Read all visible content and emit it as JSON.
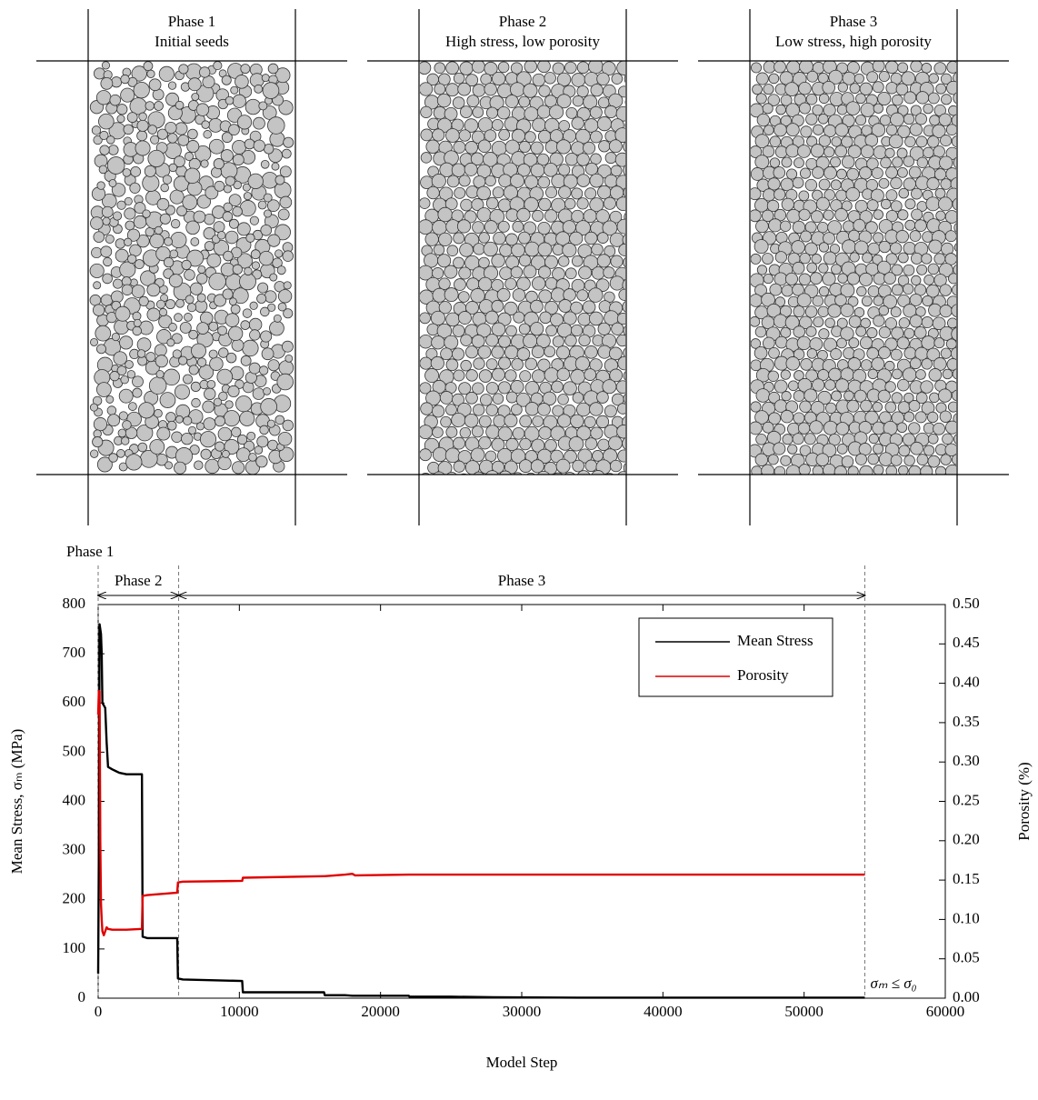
{
  "panels": [
    {
      "title": "Phase 1",
      "subtitle": "Initial seeds"
    },
    {
      "title": "Phase 2",
      "subtitle": "High stress, low porosity"
    },
    {
      "title": "Phase 3",
      "subtitle": "Low stress, high porosity"
    }
  ],
  "chart_data": {
    "type": "line",
    "xlabel": "Model Step",
    "ylabel": "Mean Stress, σₘ (MPa)",
    "y2label": "Porosity (%)",
    "x": [
      0,
      50,
      100,
      150,
      200,
      250,
      300,
      400,
      500,
      600,
      700,
      1000,
      1500,
      2000,
      3100,
      3150,
      3500,
      5600,
      5650,
      6000,
      10200,
      10250,
      16000,
      16050,
      17500,
      18000,
      18200,
      22000,
      22050,
      25000,
      28000,
      34000,
      54300
    ],
    "series": [
      {
        "name": "Mean Stress",
        "color": "#000000",
        "values": [
          50,
          300,
          760,
          750,
          740,
          700,
          600,
          595,
          590,
          520,
          470,
          465,
          458,
          455,
          455,
          125,
          122,
          122,
          40,
          38,
          35,
          12,
          12,
          6,
          6,
          5,
          5,
          5,
          3,
          3,
          2,
          1,
          1
        ]
      },
      {
        "name": "Porosity",
        "color": "#e00000",
        "axis": "y2",
        "values": [
          0.36,
          0.39,
          0.39,
          0.2,
          0.12,
          0.1,
          0.085,
          0.08,
          0.085,
          0.09,
          0.088,
          0.087,
          0.087,
          0.087,
          0.088,
          0.13,
          0.131,
          0.134,
          0.147,
          0.148,
          0.149,
          0.153,
          0.155,
          0.155,
          0.157,
          0.158,
          0.156,
          0.157,
          0.157,
          0.157,
          0.157,
          0.157,
          0.157
        ]
      }
    ],
    "xlim": [
      0,
      60000
    ],
    "xticks": [
      0,
      10000,
      20000,
      30000,
      40000,
      50000,
      60000
    ],
    "ylim": [
      0,
      800
    ],
    "yticks": [
      0,
      100,
      200,
      300,
      400,
      500,
      600,
      700,
      800
    ],
    "y2lim": [
      0,
      0.5
    ],
    "y2ticks": [
      {
        "value": 0,
        "label": "0.00"
      },
      {
        "value": 0.05,
        "label": "0.05"
      },
      {
        "value": 0.1,
        "label": "0.10"
      },
      {
        "value": 0.15,
        "label": "0.15"
      },
      {
        "value": 0.2,
        "label": "0.20"
      },
      {
        "value": 0.25,
        "label": "0.25"
      },
      {
        "value": 0.3,
        "label": "0.30"
      },
      {
        "value": 0.35,
        "label": "0.35"
      },
      {
        "value": 0.4,
        "label": "0.40"
      },
      {
        "value": 0.45,
        "label": "0.45"
      },
      {
        "value": 0.5,
        "label": "0.50"
      }
    ],
    "legend": "upper right",
    "phase_labels": [
      "Phase 1",
      "Phase 2",
      "Phase 3"
    ],
    "phase_boundaries": [
      0,
      5700,
      54300
    ],
    "annotation": "σₘ ≤ σ₀"
  }
}
